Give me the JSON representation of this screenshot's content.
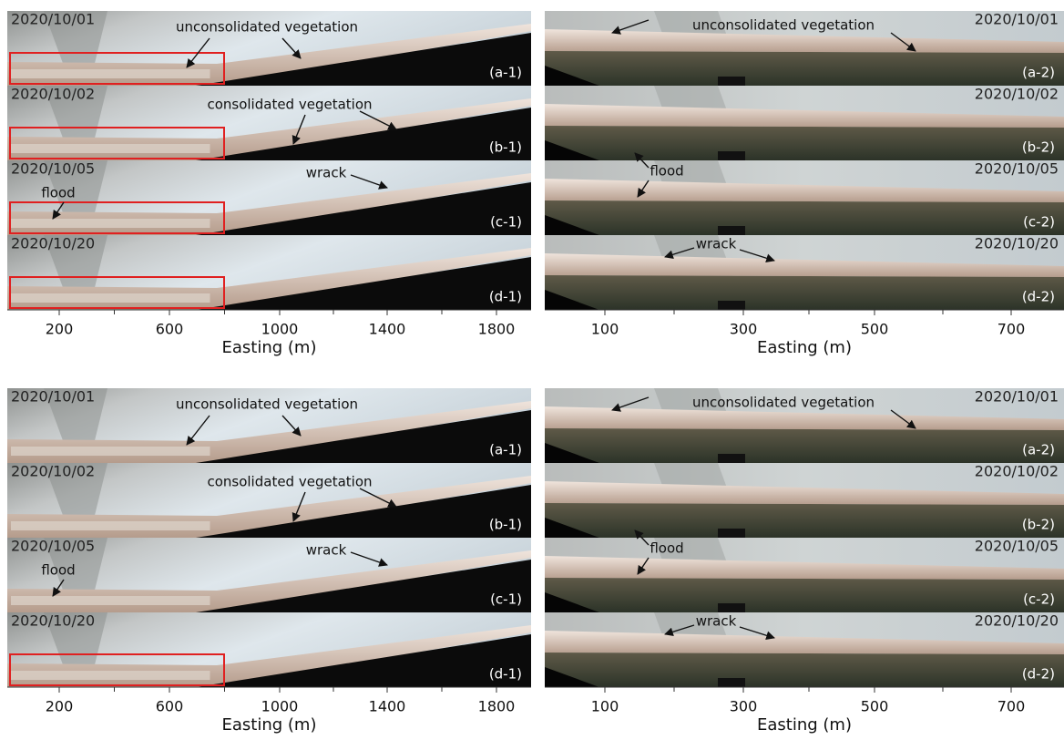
{
  "figures": [
    {
      "left": {
        "panels": [
          {
            "date": "2020/10/01",
            "label": "(a-1)",
            "annotations": [
              "unconsolidated vegetation"
            ]
          },
          {
            "date": "2020/10/02",
            "label": "(b-1)",
            "annotations": [
              "consolidated vegetation"
            ]
          },
          {
            "date": "2020/10/05",
            "label": "(c-1)",
            "annotations": [
              "wrack",
              "flood"
            ]
          },
          {
            "date": "2020/10/20",
            "label": "(d-1)",
            "annotations": []
          }
        ],
        "xticks": [
          200,
          600,
          1000,
          1400,
          1800
        ],
        "xlabel": "Easting (m)"
      },
      "right": {
        "panels": [
          {
            "date": "2020/10/01",
            "label": "(a-2)",
            "annotations": [
              "unconsolidated vegetation"
            ]
          },
          {
            "date": "2020/10/02",
            "label": "(b-2)",
            "annotations": []
          },
          {
            "date": "2020/10/05",
            "label": "(c-2)",
            "annotations": [
              "flood"
            ]
          },
          {
            "date": "2020/10/20",
            "label": "(d-2)",
            "annotations": [
              "wrack"
            ]
          }
        ],
        "xticks": [
          100,
          300,
          500,
          700
        ],
        "xlabel": "Easting (m)"
      }
    },
    {
      "left": {
        "panels": [
          {
            "date": "2020/10/01",
            "label": "(a-1)",
            "annotations": [
              "unconsolidated vegetation"
            ]
          },
          {
            "date": "2020/10/02",
            "label": "(b-1)",
            "annotations": [
              "consolidated vegetation"
            ]
          },
          {
            "date": "2020/10/05",
            "label": "(c-1)",
            "annotations": [
              "wrack",
              "flood"
            ]
          },
          {
            "date": "2020/10/20",
            "label": "(d-1)",
            "annotations": []
          }
        ],
        "xticks": [
          200,
          600,
          1000,
          1400,
          1800
        ],
        "xlabel": "Easting (m)"
      },
      "right": {
        "panels": [
          {
            "date": "2020/10/01",
            "label": "(a-2)",
            "annotations": [
              "unconsolidated vegetation"
            ]
          },
          {
            "date": "2020/10/02",
            "label": "(b-2)",
            "annotations": []
          },
          {
            "date": "2020/10/05",
            "label": "(c-2)",
            "annotations": [
              "flood"
            ]
          },
          {
            "date": "2020/10/20",
            "label": "(d-2)",
            "annotations": [
              "wrack"
            ]
          }
        ],
        "xticks": [
          100,
          300,
          500,
          700
        ],
        "xlabel": "Easting (m)"
      }
    }
  ]
}
